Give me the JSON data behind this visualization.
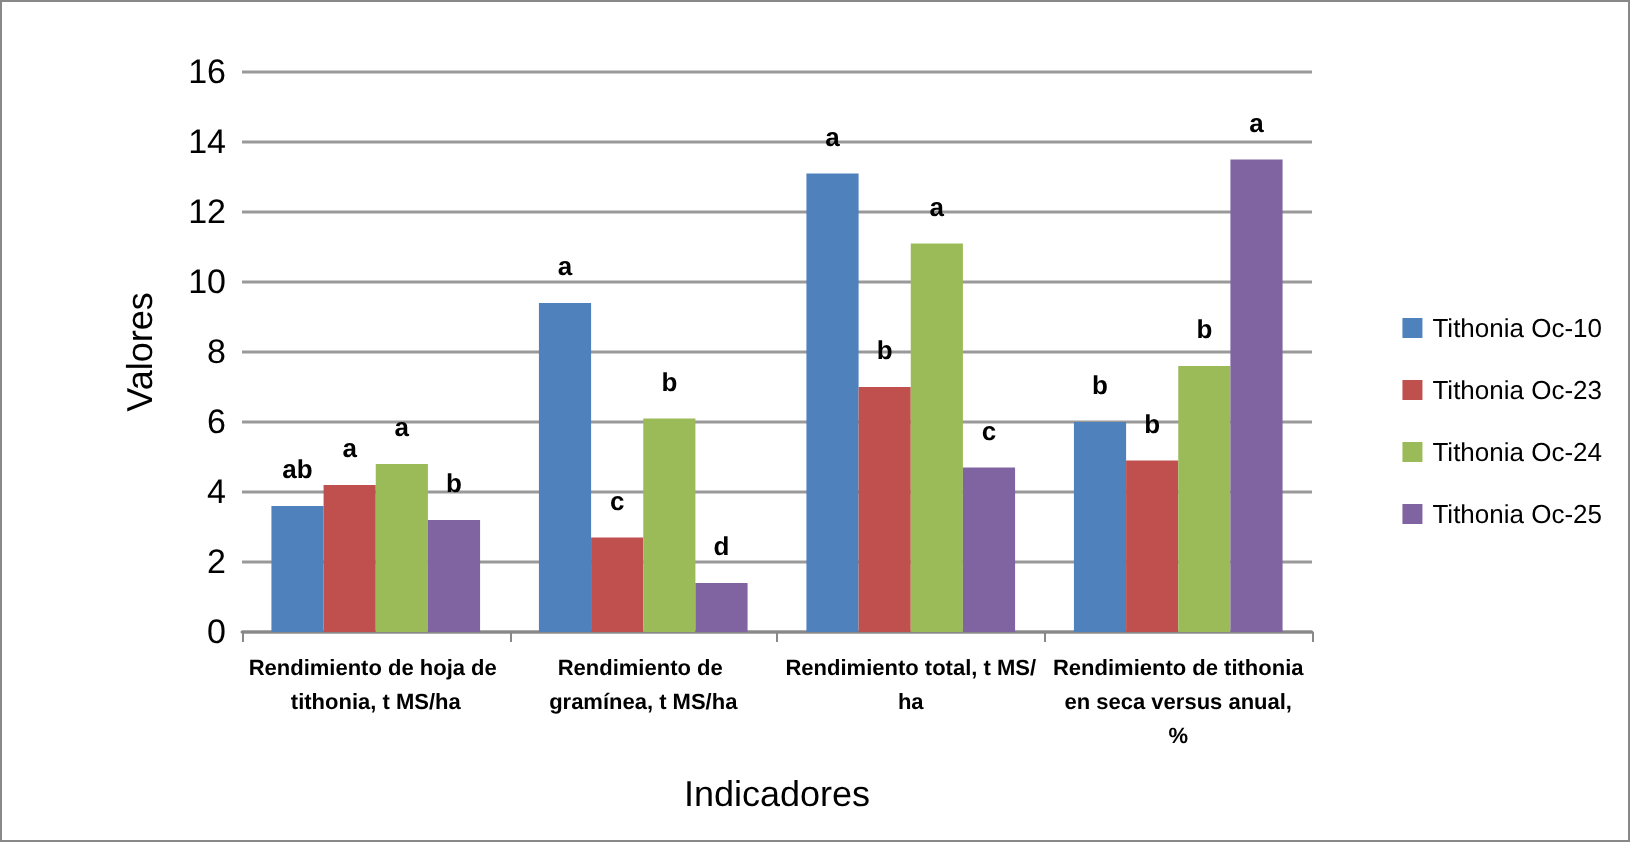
{
  "chart_data": {
    "type": "bar",
    "xlabel": "Indicadores",
    "ylabel": "Valores",
    "categories": [
      "Rendimiento de hoja de tithonia, t MS/ha",
      "Rendimiento de gramínea, t MS/ha",
      "Rendimiento total, t MS/ha",
      "Rendimiento de tithonia en seca versus anual, %"
    ],
    "series": [
      {
        "name": "Tithonia Oc-10",
        "color": "#4f81bd",
        "values": [
          3.6,
          9.4,
          13.1,
          6.0
        ],
        "value_labels": [
          "ab",
          "a",
          "a",
          "b"
        ]
      },
      {
        "name": "Tithonia Oc-23",
        "color": "#c0504d",
        "values": [
          4.2,
          2.7,
          7.0,
          4.9
        ],
        "value_labels": [
          "a",
          "c",
          "b",
          "b"
        ]
      },
      {
        "name": "Tithonia Oc-24",
        "color": "#9bbb59",
        "values": [
          4.8,
          6.1,
          11.1,
          7.6
        ],
        "value_labels": [
          "a",
          "b",
          "a",
          "b"
        ]
      },
      {
        "name": "Tithonia Oc-25",
        "color": "#8064a2",
        "values": [
          3.2,
          1.4,
          4.7,
          13.5
        ],
        "value_labels": [
          "b",
          "d",
          "c",
          "a"
        ]
      }
    ],
    "ylim": [
      0,
      16
    ],
    "yticks": [
      0,
      2,
      4,
      6,
      8,
      10,
      12,
      14,
      16
    ],
    "grid": "y",
    "legend": "right"
  }
}
